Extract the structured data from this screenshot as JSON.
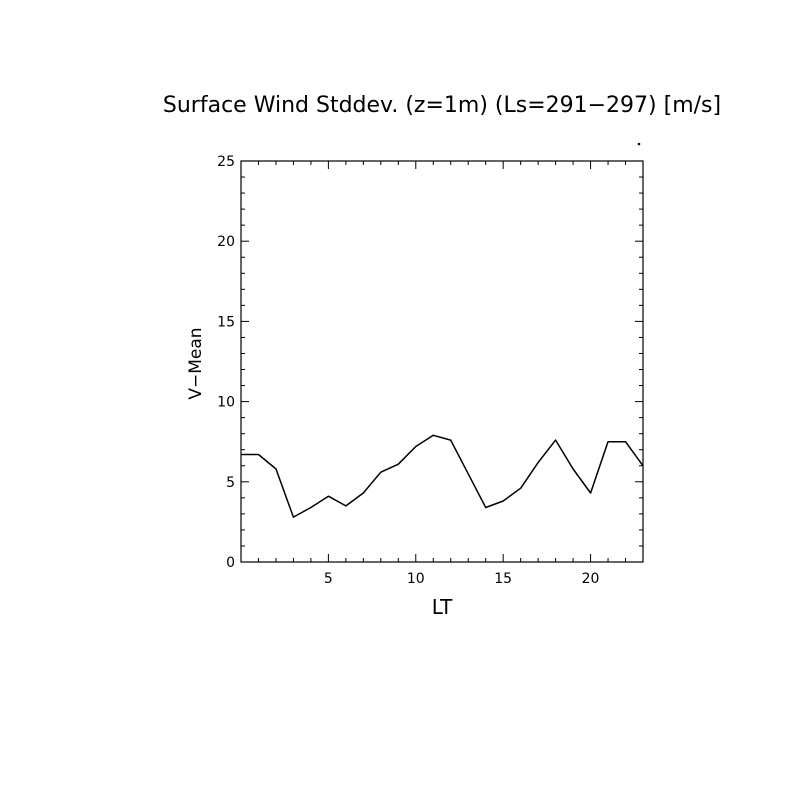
{
  "chart_data": {
    "type": "line",
    "title": "Surface Wind Stddev. (z=1m) (Ls=291−297) [m/s]",
    "xlabel": "LT",
    "ylabel": "V−Mean",
    "xlim": [
      0,
      23
    ],
    "ylim": [
      0,
      25
    ],
    "xticks": [
      5,
      10,
      15,
      20
    ],
    "yticks": [
      0,
      5,
      10,
      15,
      20,
      25
    ],
    "grid": false,
    "series": [
      {
        "x": [
          0,
          1,
          2,
          3,
          4,
          5,
          6,
          7,
          8,
          9,
          10,
          11,
          12,
          13,
          14,
          15,
          16,
          17,
          18,
          19,
          20,
          21,
          22,
          23
        ],
        "values": [
          6.7,
          6.7,
          5.8,
          2.8,
          3.4,
          4.1,
          3.5,
          4.3,
          5.6,
          6.1,
          7.2,
          7.9,
          7.6,
          5.5,
          3.4,
          3.8,
          4.6,
          6.2,
          7.6,
          5.8,
          4.3,
          7.5,
          7.5,
          6.0
        ]
      }
    ]
  }
}
